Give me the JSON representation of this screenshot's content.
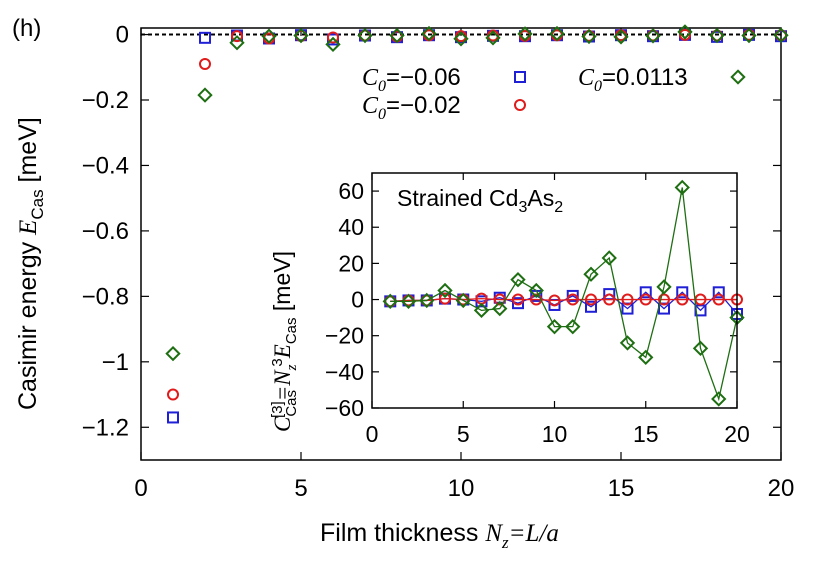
{
  "panel_label": "(h)",
  "colors": {
    "blue": "#1f1fd6",
    "red": "#e01b1b",
    "green": "#1e6e12"
  },
  "main": {
    "ylabel_prefix": "Casimir energy ",
    "ylabel_var": "E",
    "ylabel_sub": "Cas",
    "ylabel_unit": " [meV]",
    "xlabel_prefix": "Film thickness ",
    "xlabel_var": "N",
    "xlabel_sub": "z",
    "xlabel_suffix": "=L/a"
  },
  "inset": {
    "annotation_prefix": "Strained Cd",
    "annotation_sub1": "3",
    "annotation_mid": "As",
    "annotation_sub2": "2",
    "ylabel_C": "C",
    "ylabel_Csub": "Cas",
    "ylabel_sup3": "[3]",
    "ylabel_eq": "=N",
    "ylabel_zsub": "z",
    "ylabel_sup": "3",
    "ylabel_E": "E",
    "ylabel_Esub": "Cas",
    "ylabel_unit": " [meV]"
  },
  "legend": {
    "c_var": "C",
    "c_sub": "0",
    "entries": [
      {
        "text": "=−0.06",
        "marker": "square",
        "color": "#1f1fd6"
      },
      {
        "text": "=−0.02",
        "marker": "circle",
        "color": "#e01b1b"
      },
      {
        "text": "=0.0113",
        "marker": "diamond",
        "color": "#1e6e12"
      }
    ]
  },
  "chart_data": [
    {
      "type": "scatter",
      "xlim": [
        0,
        20
      ],
      "ylim": [
        -1.3,
        0.02
      ],
      "xticks": [
        "0",
        "5",
        "10",
        "15",
        "20"
      ],
      "yticks": [
        "0",
        "−0.2",
        "−0.4",
        "−0.6",
        "−0.8",
        "−1",
        "−1.2"
      ],
      "ytick_values": [
        0,
        -0.2,
        -0.4,
        -0.6,
        -0.8,
        -1,
        -1.2
      ],
      "reference_line": 0,
      "series": [
        {
          "name": "C0=−0.06",
          "marker": "square",
          "color": "#1f1fd6",
          "x": [
            1,
            2,
            3,
            4,
            5,
            6,
            7,
            8,
            9,
            10,
            11,
            12,
            13,
            14,
            15,
            16,
            17,
            18,
            19,
            20
          ],
          "y": [
            -1.17,
            -0.01,
            -0.003,
            -0.012,
            -0.002,
            -0.015,
            -0.003,
            -0.008,
            -0.002,
            -0.008,
            -0.004,
            -0.005,
            -0.002,
            -0.006,
            -0.002,
            -0.005,
            -0.001,
            -0.007,
            -0.001,
            -0.005
          ]
        },
        {
          "name": "C0=−0.02",
          "marker": "circle",
          "color": "#e01b1b",
          "x": [
            1,
            2,
            3,
            4,
            5,
            6,
            7,
            8,
            9,
            10,
            11,
            12,
            13,
            14,
            15,
            16,
            17,
            18,
            19,
            20
          ],
          "y": [
            -1.1,
            -0.09,
            -0.005,
            -0.012,
            -0.004,
            -0.009,
            -0.003,
            -0.006,
            -0.002,
            -0.005,
            -0.003,
            -0.004,
            -0.002,
            -0.004,
            -0.002,
            -0.003,
            -0.001,
            -0.003,
            -0.001,
            -0.002
          ]
        },
        {
          "name": "C0=0.0113",
          "marker": "diamond",
          "color": "#1e6e12",
          "x": [
            1,
            2,
            3,
            4,
            5,
            6,
            7,
            8,
            9,
            10,
            11,
            12,
            13,
            14,
            15,
            16,
            17,
            18,
            19,
            20
          ],
          "y": [
            -0.975,
            -0.185,
            -0.025,
            -0.005,
            -0.003,
            -0.03,
            -0.003,
            -0.003,
            0.003,
            -0.013,
            -0.01,
            0.002,
            0.003,
            -0.006,
            -0.007,
            -0.004,
            0.008,
            -0.003,
            -0.003,
            -0.002
          ]
        }
      ]
    },
    {
      "type": "line",
      "annotation": "Strained Cd3As2",
      "xlim": [
        0,
        20
      ],
      "ylim": [
        -60,
        70
      ],
      "xticks": [
        "0",
        "5",
        "10",
        "15",
        "20"
      ],
      "yticks": [
        "60",
        "40",
        "20",
        "0",
        "−20",
        "−40",
        "−60"
      ],
      "ytick_values": [
        60,
        40,
        20,
        0,
        -20,
        -40,
        -60
      ],
      "series": [
        {
          "name": "C0=−0.06",
          "marker": "square",
          "color": "#1f1fd6",
          "x": [
            1,
            2,
            3,
            4,
            5,
            6,
            7,
            8,
            9,
            10,
            11,
            12,
            13,
            14,
            15,
            16,
            17,
            18,
            19,
            20
          ],
          "y": [
            -1,
            -0.5,
            -0.5,
            0.5,
            0,
            -1,
            1,
            -2,
            2,
            -3,
            2,
            -4,
            3,
            -5,
            4,
            -5,
            4,
            -6,
            4,
            -8
          ]
        },
        {
          "name": "C0=−0.02",
          "marker": "circle",
          "color": "#e01b1b",
          "x": [
            1,
            2,
            3,
            4,
            5,
            6,
            7,
            8,
            9,
            10,
            11,
            12,
            13,
            14,
            15,
            16,
            17,
            18,
            19,
            20
          ],
          "y": [
            -1,
            -0.5,
            -0.5,
            0.5,
            0,
            0.5,
            0,
            0,
            0,
            -0.5,
            0,
            0,
            0,
            0,
            0,
            0,
            0,
            0,
            0,
            0
          ]
        },
        {
          "name": "C0=0.0113",
          "marker": "diamond",
          "color": "#1e6e12",
          "x": [
            1,
            2,
            3,
            4,
            5,
            6,
            7,
            8,
            9,
            10,
            11,
            12,
            13,
            14,
            15,
            16,
            17,
            18,
            19,
            20
          ],
          "y": [
            -1,
            -1,
            -0.5,
            5,
            -0.5,
            -6,
            -5,
            11,
            5,
            -15,
            -15,
            14,
            23,
            -24,
            -32,
            7,
            62,
            -27,
            -55,
            -10
          ]
        }
      ]
    }
  ]
}
